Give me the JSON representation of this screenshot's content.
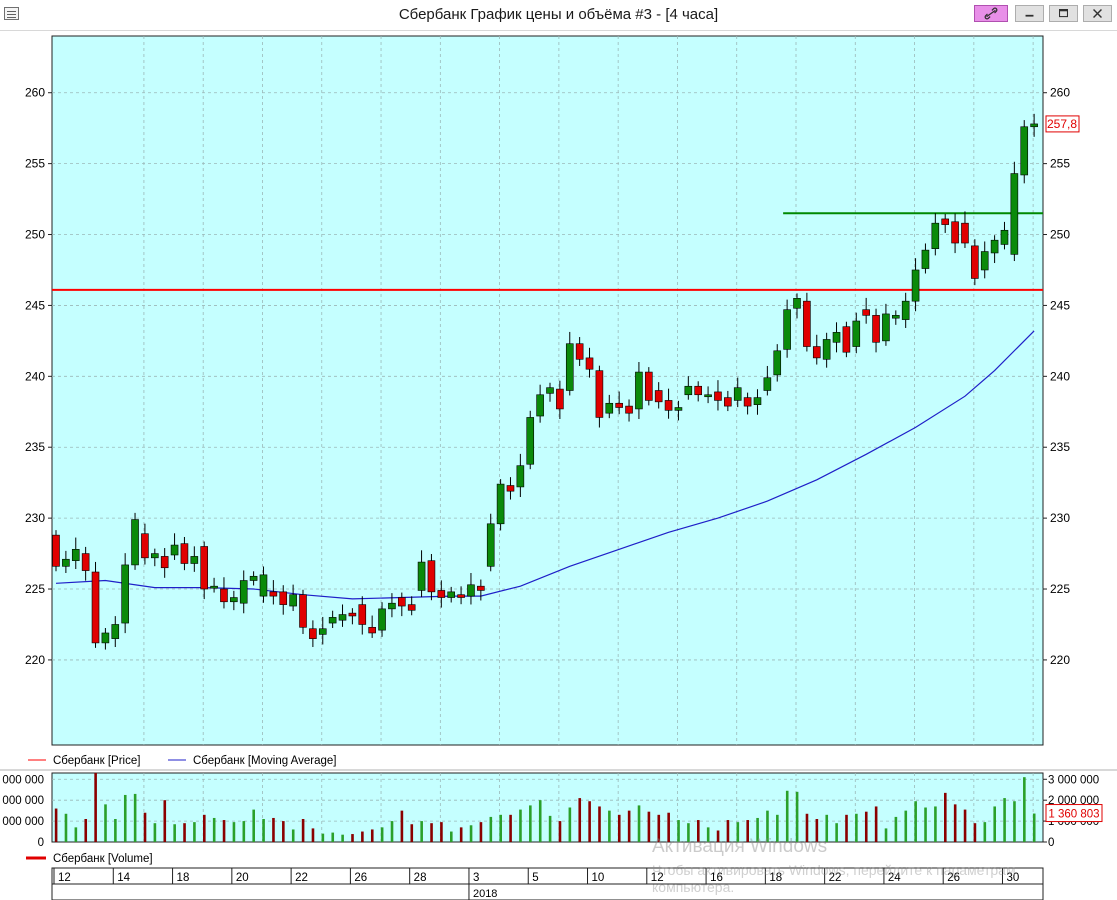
{
  "window": {
    "title": "Сбербанк График цены и объёма #3 - [4 часа]"
  },
  "colors": {
    "plot_bg": "#c5ffff",
    "grid": "#9bb8b8",
    "up": "#0a8a0a",
    "down": "#e00000",
    "ma": "#1f1fc8",
    "resistance": "#ff0000",
    "support": "#008800",
    "vol_up": "#2aa02a",
    "vol_down": "#8b0000"
  },
  "legend": {
    "price": "Сбербанк [Price]",
    "ma": "Сбербанк [Moving Average]",
    "volume": "Сбербанк [Volume]"
  },
  "watermark": {
    "line1": "Активация Windows",
    "line2": "Чтобы активировать Windows, перейдите к параметрам компьютера."
  },
  "chart_data": [
    {
      "type": "candlestick",
      "name": "price",
      "ylim": [
        214,
        264
      ],
      "yticks": [
        220,
        225,
        230,
        235,
        240,
        245,
        250,
        255,
        260
      ],
      "last_price_label": "257,8",
      "horizontal_lines": [
        {
          "kind": "resistance",
          "value": 246.1,
          "from_bar": 0
        },
        {
          "kind": "support",
          "value": 251.5,
          "from_bar": 74
        }
      ],
      "candles": [
        [
          228.8,
          226.6
        ],
        [
          226.6,
          227.1
        ],
        [
          227.0,
          227.8
        ],
        [
          227.5,
          226.3
        ],
        [
          226.2,
          221.2
        ],
        [
          221.2,
          221.9
        ],
        [
          221.5,
          222.5
        ],
        [
          222.6,
          226.7
        ],
        [
          226.7,
          229.9
        ],
        [
          228.9,
          227.2
        ],
        [
          227.2,
          227.5
        ],
        [
          227.3,
          226.5
        ],
        [
          227.4,
          228.1
        ],
        [
          228.2,
          226.8
        ],
        [
          226.8,
          227.3
        ],
        [
          228.0,
          225.0
        ],
        [
          225.1,
          225.2
        ],
        [
          225.0,
          224.1
        ],
        [
          224.1,
          224.4
        ],
        [
          224.0,
          225.6
        ],
        [
          225.6,
          225.9
        ],
        [
          224.5,
          226.0
        ],
        [
          224.8,
          224.5
        ],
        [
          224.8,
          223.9
        ],
        [
          223.8,
          224.6
        ],
        [
          224.6,
          222.3
        ],
        [
          222.2,
          221.5
        ],
        [
          221.8,
          222.2
        ],
        [
          222.6,
          223.0
        ],
        [
          222.8,
          223.2
        ],
        [
          223.3,
          223.1
        ],
        [
          223.9,
          222.5
        ],
        [
          222.3,
          221.9
        ],
        [
          222.1,
          223.6
        ],
        [
          223.6,
          224.0
        ],
        [
          224.4,
          223.8
        ],
        [
          223.9,
          223.5
        ],
        [
          224.9,
          226.9
        ],
        [
          227.0,
          224.8
        ],
        [
          224.9,
          224.4
        ],
        [
          224.4,
          224.8
        ],
        [
          224.6,
          224.4
        ],
        [
          224.5,
          225.3
        ],
        [
          225.2,
          224.9
        ],
        [
          226.6,
          229.6
        ],
        [
          229.6,
          232.4
        ],
        [
          232.3,
          231.9
        ],
        [
          232.2,
          233.7
        ],
        [
          233.8,
          237.1
        ],
        [
          237.2,
          238.7
        ],
        [
          238.8,
          239.2
        ],
        [
          239.1,
          237.7
        ],
        [
          239.0,
          242.3
        ],
        [
          242.3,
          241.2
        ],
        [
          241.3,
          240.5
        ],
        [
          240.4,
          237.1
        ],
        [
          237.4,
          238.1
        ],
        [
          238.1,
          237.8
        ],
        [
          237.9,
          237.4
        ],
        [
          237.7,
          240.3
        ],
        [
          240.3,
          238.3
        ],
        [
          239.0,
          238.2
        ],
        [
          238.3,
          237.6
        ],
        [
          237.6,
          237.8
        ],
        [
          238.7,
          239.3
        ],
        [
          239.3,
          238.7
        ],
        [
          238.7,
          238.7
        ],
        [
          238.9,
          238.3
        ],
        [
          238.5,
          237.9
        ],
        [
          238.3,
          239.2
        ],
        [
          238.5,
          237.9
        ],
        [
          238.0,
          238.5
        ],
        [
          239.0,
          239.9
        ],
        [
          240.1,
          241.8
        ],
        [
          241.9,
          244.7
        ],
        [
          244.8,
          245.5
        ],
        [
          245.3,
          242.1
        ],
        [
          242.1,
          241.3
        ],
        [
          241.2,
          242.6
        ],
        [
          242.4,
          243.1
        ],
        [
          243.5,
          241.7
        ],
        [
          242.1,
          243.9
        ],
        [
          244.7,
          244.3
        ],
        [
          244.3,
          242.4
        ],
        [
          242.5,
          244.4
        ],
        [
          244.1,
          244.3
        ],
        [
          244.0,
          245.3
        ],
        [
          245.3,
          247.5
        ],
        [
          247.6,
          248.9
        ],
        [
          249.0,
          250.8
        ],
        [
          251.1,
          250.7
        ],
        [
          250.9,
          249.4
        ],
        [
          250.8,
          249.4
        ],
        [
          249.2,
          246.9
        ],
        [
          247.5,
          248.8
        ],
        [
          248.7,
          249.6
        ],
        [
          249.3,
          250.3
        ],
        [
          248.6,
          254.3
        ],
        [
          254.2,
          257.6
        ],
        [
          257.6,
          257.8
        ]
      ],
      "moving_average": [
        [
          0,
          225.4
        ],
        [
          5,
          225.6
        ],
        [
          10,
          225.1
        ],
        [
          15,
          225.1
        ],
        [
          20,
          225.0
        ],
        [
          25,
          224.6
        ],
        [
          30,
          224.3
        ],
        [
          35,
          224.4
        ],
        [
          40,
          224.5
        ],
        [
          43,
          224.5
        ],
        [
          47,
          225.2
        ],
        [
          52,
          226.6
        ],
        [
          57,
          227.8
        ],
        [
          62,
          229.0
        ],
        [
          67,
          230.0
        ],
        [
          72,
          231.2
        ],
        [
          77,
          232.7
        ],
        [
          82,
          234.5
        ],
        [
          87,
          236.4
        ],
        [
          92,
          238.6
        ],
        [
          95,
          240.4
        ],
        [
          99,
          243.2
        ]
      ]
    },
    {
      "type": "bar",
      "name": "volume",
      "ylim": [
        0,
        3300000
      ],
      "yticks_left": [
        "000 000",
        "000 000",
        "000 000",
        "0"
      ],
      "yticks_right": [
        "3 000 000",
        "2 000 000",
        "1 000 000",
        "0"
      ],
      "ytick_values": [
        3000000,
        2000000,
        1000000,
        0
      ],
      "last_volume_label": "1 360 803",
      "values": [
        1600000,
        1350000,
        700000,
        1100000,
        3300000,
        1800000,
        1100000,
        2250000,
        2300000,
        1400000,
        900000,
        2000000,
        850000,
        900000,
        950000,
        1300000,
        1150000,
        1050000,
        950000,
        1000000,
        1550000,
        1100000,
        1150000,
        1000000,
        600000,
        1100000,
        650000,
        400000,
        450000,
        350000,
        380000,
        500000,
        600000,
        700000,
        1000000,
        1500000,
        850000,
        1000000,
        900000,
        950000,
        500000,
        700000,
        800000,
        950000,
        1200000,
        1300000,
        1300000,
        1550000,
        1750000,
        2000000,
        1250000,
        1000000,
        1650000,
        2100000,
        1950000,
        1700000,
        1500000,
        1300000,
        1500000,
        1750000,
        1450000,
        1300000,
        1400000,
        1050000,
        900000,
        1050000,
        700000,
        550000,
        1050000,
        950000,
        1050000,
        1150000,
        1500000,
        1300000,
        2450000,
        2400000,
        1350000,
        1100000,
        1300000,
        900000,
        1300000,
        1350000,
        1450000,
        1700000,
        650000,
        1200000,
        1500000,
        1950000,
        1650000,
        1700000,
        2350000,
        1800000,
        1550000,
        900000,
        950000,
        1700000,
        2100000,
        1950000,
        3100000,
        1360803
      ]
    }
  ],
  "time_axis": {
    "day_labels": [
      "12",
      "14",
      "18",
      "20",
      "22",
      "26",
      "28",
      "3",
      "5",
      "10",
      "12",
      "16",
      "18",
      "22",
      "24",
      "26",
      "30"
    ],
    "year_label": "2018"
  }
}
